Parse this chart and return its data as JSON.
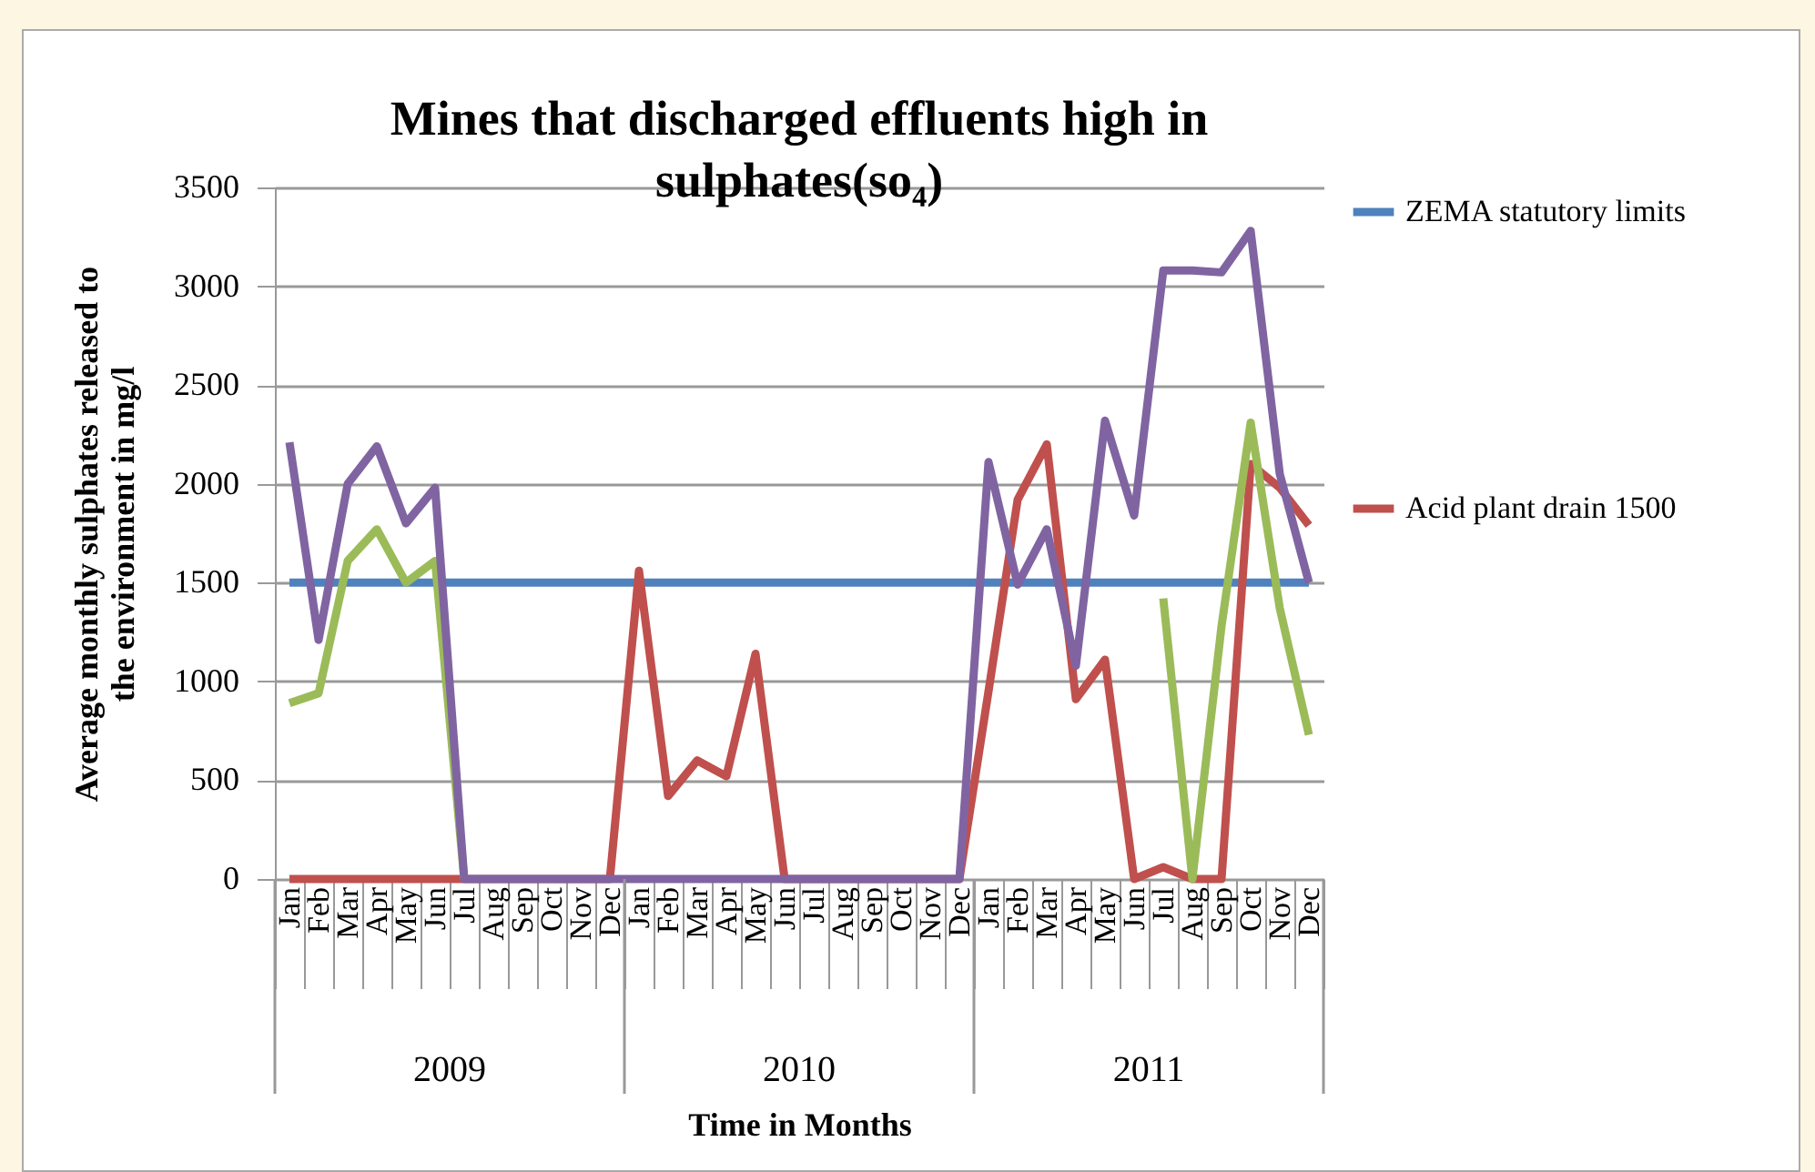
{
  "chart_data": {
    "type": "line",
    "title": "Mines  that discharged effluents high in sulphates(so₄)",
    "xlabel": "Time in Months",
    "ylabel": "Average monthly sulphates released to the environment in mg/l",
    "categories": [
      "Jan",
      "Feb",
      "Mar",
      "Apr",
      "May",
      "Jun",
      "Jul",
      "Aug",
      "Sep",
      "Oct",
      "Nov",
      "Dec",
      "Jan",
      "Feb",
      "Mar",
      "Apr",
      "May",
      "Jun",
      "Jul",
      "Aug",
      "Sep",
      "Oct",
      "Nov",
      "Dec",
      "Jan",
      "Feb",
      "Mar",
      "Apr",
      "May",
      "Jun",
      "Jul",
      "Aug",
      "Sep",
      "Oct",
      "Nov",
      "Dec"
    ],
    "annotations": [
      "2009",
      "2010",
      "2011"
    ],
    "ylim": [
      0,
      3500
    ],
    "yticks": [
      0,
      500,
      1000,
      1500,
      2000,
      2500,
      3000,
      3500
    ],
    "grid": "y",
    "legend": "right",
    "series": [
      {
        "name": "ZEMA statutory limits",
        "color": "#4f81bd",
        "values": [
          1500,
          1500,
          1500,
          1500,
          1500,
          1500,
          1500,
          1500,
          1500,
          1500,
          1500,
          1500,
          1500,
          1500,
          1500,
          1500,
          1500,
          1500,
          1500,
          1500,
          1500,
          1500,
          1500,
          1500,
          1500,
          1500,
          1500,
          1500,
          1500,
          1500,
          1500,
          1500,
          1500,
          1500,
          1500,
          1500
        ]
      },
      {
        "name": "Acid plant drain 1500",
        "color": "#c0504d",
        "values": [
          0,
          0,
          0,
          0,
          0,
          0,
          0,
          0,
          0,
          0,
          0,
          0,
          1560,
          420,
          600,
          520,
          1140,
          0,
          0,
          0,
          0,
          0,
          0,
          0,
          950,
          1920,
          2200,
          910,
          1110,
          0,
          60,
          0,
          0,
          2100,
          1980,
          1790
        ]
      },
      {
        "color": "#9bbb59",
        "values": [
          890,
          940,
          1610,
          1770,
          1500,
          1610,
          0,
          null,
          null,
          null,
          null,
          null,
          null,
          null,
          null,
          null,
          null,
          null,
          null,
          null,
          null,
          null,
          null,
          null,
          null,
          null,
          null,
          null,
          null,
          null,
          1420,
          0,
          1280,
          2310,
          1370,
          730
        ]
      },
      {
        "color": "#8064a2",
        "values": [
          2210,
          1210,
          2000,
          2190,
          1800,
          1980,
          0,
          0,
          0,
          0,
          0,
          0,
          0,
          0,
          0,
          0,
          0,
          0,
          0,
          0,
          0,
          0,
          0,
          0,
          2110,
          1490,
          1770,
          1080,
          2320,
          1840,
          3080,
          3080,
          3070,
          3280,
          2050,
          1500
        ]
      }
    ]
  }
}
